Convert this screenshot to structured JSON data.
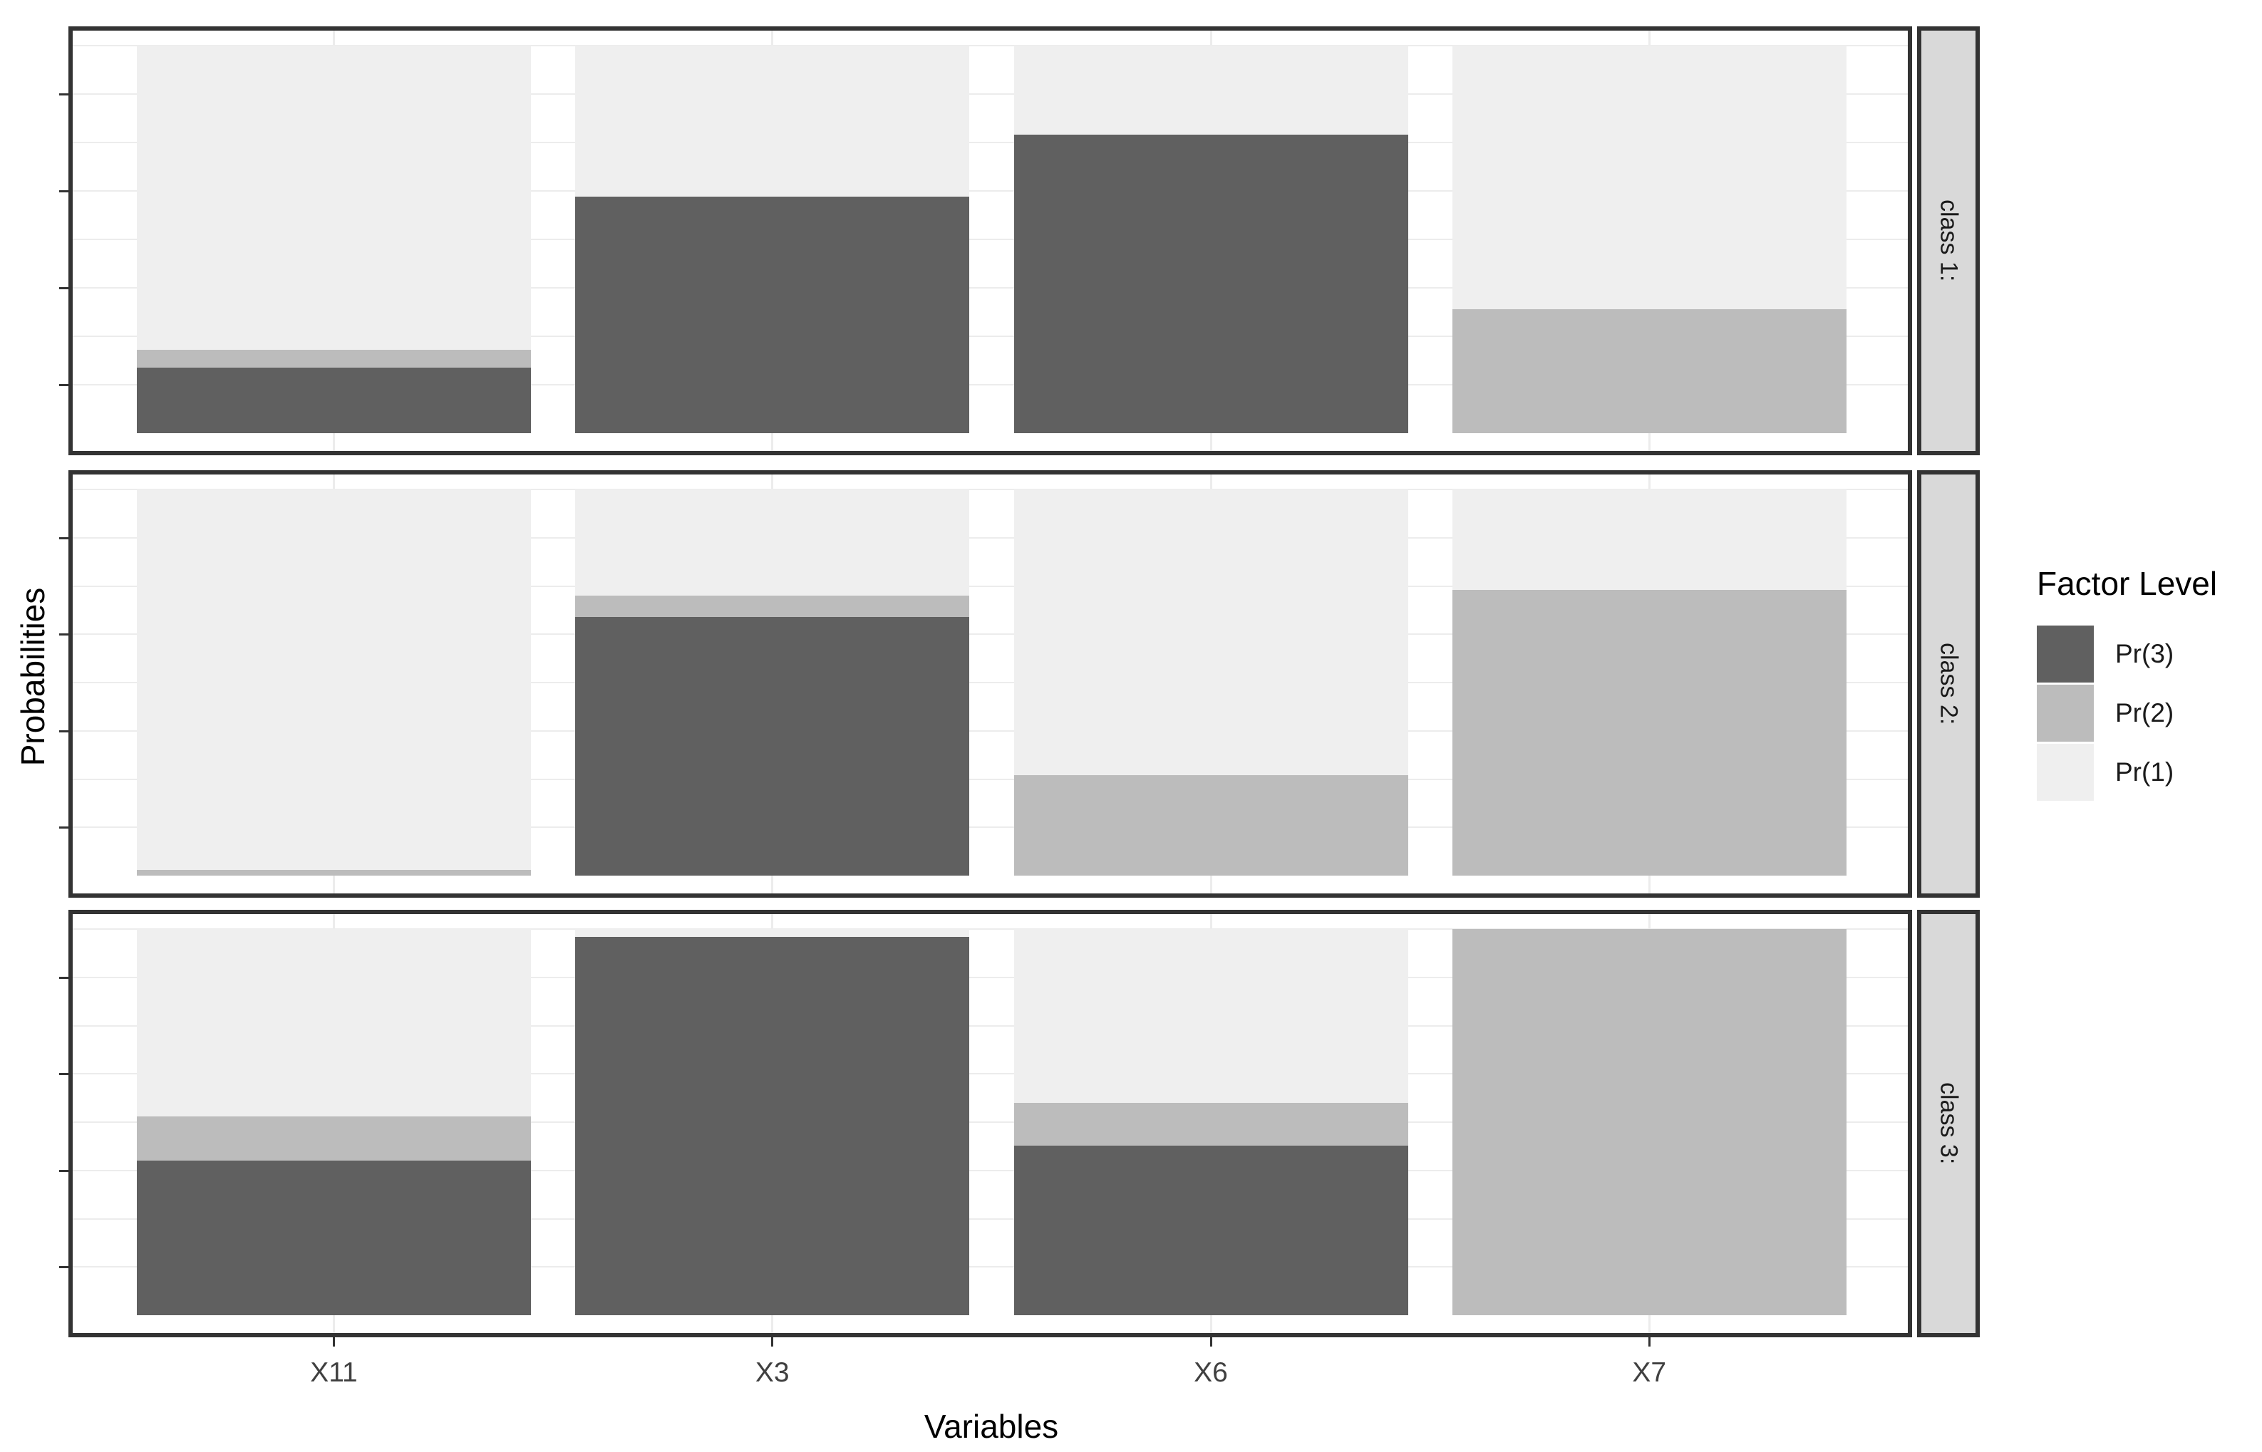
{
  "chart_data": {
    "type": "bar",
    "subtype": "stacked-proportion-faceted",
    "title": "",
    "xlabel": "Variables",
    "ylabel": "Probabilities",
    "categories": [
      "X11",
      "X3",
      "X6",
      "X7"
    ],
    "ylim": [
      0,
      1
    ],
    "grid": true,
    "y_tick_labels_shown": false,
    "y_tick_positions": [
      0.125,
      0.375,
      0.625,
      0.875
    ],
    "gridline_positions": [
      0.125,
      0.25,
      0.375,
      0.5,
      0.625,
      0.75,
      0.875,
      1.0
    ],
    "stack_order_bottom_to_top": [
      "Pr(3)",
      "Pr(2)",
      "Pr(1)"
    ],
    "legend": {
      "title": "Factor Level",
      "position": "right",
      "entries": [
        {
          "label": "Pr(3)",
          "color": "#606060"
        },
        {
          "label": "Pr(2)",
          "color": "#bcbcbc"
        },
        {
          "label": "Pr(1)",
          "color": "#efefef"
        }
      ]
    },
    "facets": [
      {
        "label": "class 1:",
        "series": [
          {
            "name": "Pr(3)",
            "values": [
              0.17,
              0.61,
              0.77,
              0.0
            ]
          },
          {
            "name": "Pr(2)",
            "values": [
              0.045,
              0.0,
              0.0,
              0.32
            ]
          },
          {
            "name": "Pr(1)",
            "values": [
              0.785,
              0.39,
              0.23,
              0.68
            ]
          }
        ]
      },
      {
        "label": "class 2:",
        "series": [
          {
            "name": "Pr(3)",
            "values": [
              0.0,
              0.67,
              0.0,
              0.0
            ]
          },
          {
            "name": "Pr(2)",
            "values": [
              0.015,
              0.055,
              0.26,
              0.74
            ]
          },
          {
            "name": "Pr(1)",
            "values": [
              0.985,
              0.275,
              0.74,
              0.26
            ]
          }
        ]
      },
      {
        "label": "class 3:",
        "series": [
          {
            "name": "Pr(3)",
            "values": [
              0.4,
              0.98,
              0.44,
              0.0
            ]
          },
          {
            "name": "Pr(2)",
            "values": [
              0.115,
              0.0,
              0.11,
              1.0
            ]
          },
          {
            "name": "Pr(1)",
            "values": [
              0.485,
              0.02,
              0.45,
              0.0
            ]
          }
        ]
      }
    ],
    "colors": {
      "Pr(3)": "#606060",
      "Pr(2)": "#bcbcbc",
      "Pr(1)": "#efefef"
    },
    "style": {
      "panel_background": "#ffffff",
      "panel_border": "#333333",
      "strip_background": "#d9d9d9",
      "gridline_color": "#ececec",
      "axis_text_color": "#404040",
      "title_text_color": "#000000"
    }
  }
}
